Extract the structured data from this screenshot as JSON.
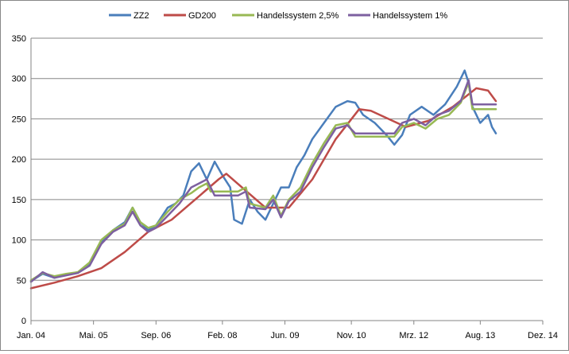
{
  "chart_data": {
    "type": "line",
    "title": "",
    "xlabel": "",
    "ylabel": "",
    "ylim": [
      0,
      350
    ],
    "yticks": [
      0,
      50,
      100,
      150,
      200,
      250,
      300,
      350
    ],
    "grid": "horizontal",
    "legend_position": "top",
    "x_tick_labels": [
      "Jan. 04",
      "Mai. 05",
      "Sep. 06",
      "Feb. 08",
      "Jun. 09",
      "Nov. 10",
      "Mrz. 12",
      "Aug. 13",
      "Dez. 14"
    ],
    "x_range": [
      "Jan. 04",
      "Dez. 14"
    ],
    "series": [
      {
        "name": "ZZ2",
        "color": "#4a7ebb",
        "points": [
          [
            "Jan. 04",
            49
          ],
          [
            "Apr. 04",
            58
          ],
          [
            "Jul. 04",
            53
          ],
          [
            "Okt. 04",
            57
          ],
          [
            "Jan. 05",
            60
          ],
          [
            "Apr. 05",
            70
          ],
          [
            "Jul. 05",
            97
          ],
          [
            "Okt. 05",
            112
          ],
          [
            "Jan. 06",
            122
          ],
          [
            "Mrz. 06",
            140
          ],
          [
            "Mai. 06",
            122
          ],
          [
            "Jul. 06",
            112
          ],
          [
            "Sep. 06",
            118
          ],
          [
            "Dez. 06",
            140
          ],
          [
            "Feb. 07",
            145
          ],
          [
            "Apr. 07",
            155
          ],
          [
            "Jun. 07",
            185
          ],
          [
            "Aug. 07",
            195
          ],
          [
            "Okt. 07",
            175
          ],
          [
            "Dez. 07",
            197
          ],
          [
            "Feb. 08",
            180
          ],
          [
            "Apr. 08",
            165
          ],
          [
            "Mai. 08",
            125
          ],
          [
            "Jul. 08",
            120
          ],
          [
            "Sep. 08",
            150
          ],
          [
            "Nov. 08",
            135
          ],
          [
            "Jan. 09",
            125
          ],
          [
            "Mrz. 09",
            145
          ],
          [
            "Mai. 09",
            165
          ],
          [
            "Jul. 09",
            165
          ],
          [
            "Sep. 09",
            190
          ],
          [
            "Nov. 09",
            205
          ],
          [
            "Jan. 10",
            225
          ],
          [
            "Apr. 10",
            245
          ],
          [
            "Jul. 10",
            265
          ],
          [
            "Okt. 10",
            272
          ],
          [
            "Dez. 10",
            270
          ],
          [
            "Feb. 11",
            255
          ],
          [
            "Mai. 11",
            245
          ],
          [
            "Aug. 11",
            230
          ],
          [
            "Okt. 11",
            218
          ],
          [
            "Dez. 11",
            230
          ],
          [
            "Feb. 12",
            255
          ],
          [
            "Mai. 12",
            265
          ],
          [
            "Aug. 12",
            255
          ],
          [
            "Nov. 12",
            268
          ],
          [
            "Feb. 13",
            290
          ],
          [
            "Apr. 13",
            310
          ],
          [
            "Mai. 13",
            295
          ],
          [
            "Jun. 13",
            265
          ],
          [
            "Aug. 13",
            245
          ],
          [
            "Okt. 13",
            255
          ],
          [
            "Nov. 13",
            240
          ],
          [
            "Dez. 13",
            232
          ]
        ]
      },
      {
        "name": "GD200",
        "color": "#be4b48",
        "points": [
          [
            "Jan. 04",
            40
          ],
          [
            "Jul. 04",
            47
          ],
          [
            "Jan. 05",
            55
          ],
          [
            "Jul. 05",
            65
          ],
          [
            "Jan. 06",
            85
          ],
          [
            "Jul. 06",
            110
          ],
          [
            "Jan. 07",
            125
          ],
          [
            "Jul. 07",
            150
          ],
          [
            "Jan. 08",
            175
          ],
          [
            "Mrz. 08",
            182
          ],
          [
            "Jul. 08",
            165
          ],
          [
            "Jan. 09",
            140
          ],
          [
            "Jul. 09",
            140
          ],
          [
            "Jan. 10",
            175
          ],
          [
            "Jul. 10",
            225
          ],
          [
            "Jan. 11",
            262
          ],
          [
            "Apr. 11",
            260
          ],
          [
            "Jan. 12",
            240
          ],
          [
            "Jul. 12",
            248
          ],
          [
            "Jan. 13",
            265
          ],
          [
            "Jul. 13",
            288
          ],
          [
            "Okt. 13",
            285
          ],
          [
            "Dez. 13",
            272
          ]
        ]
      },
      {
        "name": "Handelssystem 2,5%",
        "color": "#98b954",
        "points": [
          [
            "Jan. 04",
            50
          ],
          [
            "Apr. 04",
            59
          ],
          [
            "Jul. 04",
            55
          ],
          [
            "Okt. 04",
            58
          ],
          [
            "Jan. 05",
            60
          ],
          [
            "Apr. 05",
            72
          ],
          [
            "Jul. 05",
            100
          ],
          [
            "Okt. 05",
            112
          ],
          [
            "Jan. 06",
            120
          ],
          [
            "Mrz. 06",
            140
          ],
          [
            "Mai. 06",
            122
          ],
          [
            "Jul. 06",
            115
          ],
          [
            "Sep. 06",
            118
          ],
          [
            "Dez. 06",
            135
          ],
          [
            "Mrz. 07",
            150
          ],
          [
            "Jun. 07",
            158
          ],
          [
            "Aug. 07",
            165
          ],
          [
            "Okt. 07",
            170
          ],
          [
            "Nov. 07",
            160
          ],
          [
            "Jun. 08",
            160
          ],
          [
            "Aug. 08",
            165
          ],
          [
            "Sep. 08",
            145
          ],
          [
            "Jan. 09",
            140
          ],
          [
            "Mrz. 09",
            155
          ],
          [
            "Mai. 09",
            130
          ],
          [
            "Jul. 09",
            150
          ],
          [
            "Okt. 09",
            165
          ],
          [
            "Jan. 10",
            195
          ],
          [
            "Apr. 10",
            220
          ],
          [
            "Jul. 10",
            242
          ],
          [
            "Okt. 10",
            245
          ],
          [
            "Dez. 10",
            228
          ],
          [
            "Okt. 11",
            228
          ],
          [
            "Dez. 11",
            240
          ],
          [
            "Mrz. 12",
            245
          ],
          [
            "Jun. 12",
            238
          ],
          [
            "Sep. 12",
            250
          ],
          [
            "Dez. 12",
            255
          ],
          [
            "Mrz. 13",
            270
          ],
          [
            "Mai. 13",
            295
          ],
          [
            "Jun. 13",
            262
          ],
          [
            "Dez. 13",
            262
          ]
        ]
      },
      {
        "name": "Handelssystem 1%",
        "color": "#7d60a0",
        "points": [
          [
            "Jan. 04",
            48
          ],
          [
            "Apr. 04",
            60
          ],
          [
            "Jul. 04",
            53
          ],
          [
            "Okt. 04",
            56
          ],
          [
            "Jan. 05",
            59
          ],
          [
            "Apr. 05",
            68
          ],
          [
            "Jul. 05",
            95
          ],
          [
            "Okt. 05",
            110
          ],
          [
            "Jan. 06",
            118
          ],
          [
            "Mrz. 06",
            135
          ],
          [
            "Mai. 06",
            118
          ],
          [
            "Jul. 06",
            110
          ],
          [
            "Sep. 06",
            115
          ],
          [
            "Dez. 06",
            130
          ],
          [
            "Mrz. 07",
            145
          ],
          [
            "Jun. 07",
            165
          ],
          [
            "Aug. 07",
            170
          ],
          [
            "Okt. 07",
            175
          ],
          [
            "Dez. 07",
            155
          ],
          [
            "Jun. 08",
            155
          ],
          [
            "Aug. 08",
            160
          ],
          [
            "Sep. 08",
            140
          ],
          [
            "Jan. 09",
            138
          ],
          [
            "Mrz. 09",
            150
          ],
          [
            "Mai. 09",
            128
          ],
          [
            "Jul. 09",
            148
          ],
          [
            "Okt. 09",
            160
          ],
          [
            "Jan. 10",
            190
          ],
          [
            "Apr. 10",
            215
          ],
          [
            "Jul. 10",
            238
          ],
          [
            "Okt. 10",
            242
          ],
          [
            "Dez. 10",
            232
          ],
          [
            "Okt. 11",
            232
          ],
          [
            "Dez. 11",
            245
          ],
          [
            "Mrz. 12",
            250
          ],
          [
            "Jun. 12",
            242
          ],
          [
            "Sep. 12",
            255
          ],
          [
            "Dez. 12",
            260
          ],
          [
            "Mrz. 13",
            272
          ],
          [
            "Mai. 13",
            298
          ],
          [
            "Jun. 13",
            268
          ],
          [
            "Dez. 13",
            268
          ]
        ]
      }
    ]
  }
}
